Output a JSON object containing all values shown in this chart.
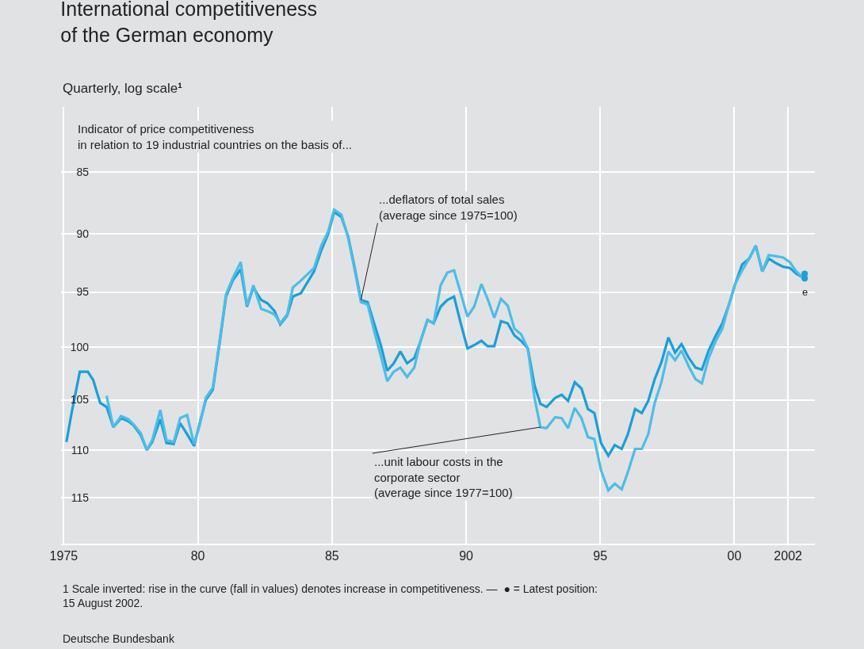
{
  "chart_data": {
    "type": "line",
    "title": "International competitiveness\nof the German economy",
    "subtitle": "Quarterly, log scale¹",
    "log": "y",
    "grid": true,
    "line_style": "solid",
    "xlim": [
      1974.9,
      2003
    ],
    "ylim": [
      120,
      80
    ],
    "xticks": [
      {
        "value": 1975,
        "label": "1975"
      },
      {
        "value": 1980,
        "label": "80"
      },
      {
        "value": 1985,
        "label": "85"
      },
      {
        "value": 1990,
        "label": "90"
      },
      {
        "value": 1995,
        "label": "95"
      },
      {
        "value": 2000,
        "label": "00"
      },
      {
        "value": 2002,
        "label": "2002"
      }
    ],
    "yticks": [
      85,
      90,
      95,
      100,
      105,
      110,
      115
    ],
    "series": [
      {
        "color": "#1a9fd9",
        "marker": "none",
        "x": [
          1975.1,
          1975.3,
          1975.6,
          1975.9,
          1976.1,
          1976.36,
          1976.6,
          1976.85,
          1977.14,
          1977.4,
          1977.6,
          1977.87,
          1978.1,
          1978.3,
          1978.6,
          1978.83,
          1979.1,
          1979.34,
          1979.6,
          1979.86,
          1980.07,
          1980.3,
          1980.56,
          1980.8,
          1981.05,
          1981.3,
          1981.6,
          1981.83,
          1982.07,
          1982.36,
          1982.6,
          1982.86,
          1983.07,
          1983.33,
          1983.54,
          1983.84,
          1984.33,
          1984.6,
          1984.86,
          1985.08,
          1985.35,
          1985.6,
          1985.84,
          1986.08,
          1986.33,
          1986.57,
          1986.82,
          1987.06,
          1987.3,
          1987.55,
          1987.8,
          1988.07,
          1988.28,
          1988.56,
          1988.79,
          1989.05,
          1989.3,
          1989.55,
          1989.8,
          1990.05,
          1990.3,
          1990.57,
          1990.8,
          1991.05,
          1991.3,
          1991.55,
          1991.8,
          1992.05,
          1992.3,
          1992.55,
          1992.77,
          1993.0,
          1993.32,
          1993.56,
          1993.8,
          1994.05,
          1994.3,
          1994.54,
          1994.78,
          1995.03,
          1995.3,
          1995.54,
          1995.8,
          1996.03,
          1996.3,
          1996.55,
          1996.79,
          1997.03,
          1997.28,
          1997.54,
          1997.79,
          1998.03,
          1998.3,
          1998.55,
          1998.79,
          1999.04,
          1999.31,
          1999.55,
          1999.8,
          2000.03,
          2000.29,
          2000.55,
          2000.8,
          2001.04,
          2001.28,
          2001.56,
          2001.82,
          2002.07,
          2002.31,
          2002.54
        ],
        "values": [
          109.2,
          106.2,
          102.3,
          102.3,
          103.1,
          105.3,
          105.7,
          107.7,
          106.8,
          107.1,
          107.5,
          108.5,
          110.0,
          109.2,
          106.9,
          109.3,
          109.4,
          107.3,
          108.4,
          109.6,
          107.3,
          105.0,
          104.0,
          99.8,
          95.4,
          94.0,
          93.0,
          96.3,
          94.6,
          95.7,
          96.0,
          96.7,
          97.9,
          97.1,
          95.4,
          95.1,
          93.2,
          91.4,
          90.0,
          88.2,
          88.6,
          90.2,
          92.8,
          95.7,
          95.9,
          97.8,
          99.8,
          102.2,
          101.5,
          100.4,
          101.5,
          101.0,
          99.6,
          97.5,
          97.8,
          96.3,
          95.7,
          95.4,
          97.8,
          100.1,
          99.8,
          99.4,
          99.9,
          99.9,
          97.6,
          97.8,
          98.9,
          99.4,
          100.1,
          103.6,
          105.4,
          105.7,
          104.8,
          104.5,
          105.1,
          103.3,
          103.9,
          105.9,
          106.3,
          109.3,
          110.6,
          109.5,
          109.9,
          108.4,
          105.9,
          106.3,
          105.1,
          103.0,
          101.4,
          99.1,
          100.5,
          99.7,
          101.0,
          101.9,
          102.1,
          100.3,
          98.9,
          97.8,
          96.1,
          94.3,
          92.6,
          92.1,
          91.0,
          93.2,
          92.1,
          92.5,
          92.8,
          92.9,
          93.4,
          93.7
        ]
      },
      {
        "color": "#4dbde6",
        "marker": "none",
        "x": [
          1976.6,
          1976.85,
          1977.14,
          1977.4,
          1977.6,
          1977.87,
          1978.1,
          1978.3,
          1978.6,
          1978.83,
          1979.1,
          1979.34,
          1979.6,
          1979.86,
          1980.07,
          1980.3,
          1980.56,
          1980.8,
          1981.05,
          1981.3,
          1981.6,
          1981.83,
          1982.07,
          1982.36,
          1982.6,
          1982.86,
          1983.07,
          1983.33,
          1983.54,
          1983.84,
          1984.33,
          1984.6,
          1984.86,
          1985.08,
          1985.35,
          1985.6,
          1985.84,
          1986.08,
          1986.33,
          1986.57,
          1986.82,
          1987.06,
          1987.3,
          1987.55,
          1987.8,
          1988.07,
          1988.28,
          1988.56,
          1988.79,
          1989.05,
          1989.3,
          1989.55,
          1989.8,
          1990.05,
          1990.3,
          1990.57,
          1990.8,
          1991.05,
          1991.3,
          1991.55,
          1991.8,
          1992.05,
          1992.3,
          1992.55,
          1992.77,
          1993.0,
          1993.32,
          1993.56,
          1993.8,
          1994.05,
          1994.3,
          1994.54,
          1994.78,
          1995.03,
          1995.3,
          1995.54,
          1995.8,
          1996.03,
          1996.3,
          1996.55,
          1996.79,
          1997.03,
          1997.28,
          1997.54,
          1997.79,
          1998.03,
          1998.3,
          1998.55,
          1998.79,
          1999.04,
          1999.31,
          1999.55,
          1999.8,
          2000.03,
          2000.29,
          2000.55,
          2000.8,
          2001.04,
          2001.28,
          2001.56,
          2001.82,
          2002.07,
          2002.31,
          2002.54
        ],
        "values": [
          104.6,
          107.7,
          106.6,
          106.9,
          107.4,
          108.3,
          110.0,
          109.0,
          106.0,
          109.0,
          109.2,
          106.8,
          106.5,
          109.4,
          107.5,
          104.8,
          103.8,
          99.6,
          95.2,
          93.8,
          92.4,
          96.2,
          94.4,
          96.5,
          96.7,
          97.0,
          97.8,
          97.0,
          94.6,
          94.0,
          92.9,
          91.0,
          89.8,
          88.0,
          88.4,
          90.3,
          93.0,
          95.9,
          96.1,
          98.5,
          100.8,
          103.2,
          102.3,
          101.9,
          102.8,
          101.9,
          99.6,
          97.5,
          97.8,
          94.4,
          93.3,
          93.1,
          95.1,
          97.2,
          96.3,
          94.3,
          95.6,
          97.3,
          95.6,
          96.2,
          98.3,
          98.8,
          100.1,
          104.8,
          107.7,
          107.8,
          106.7,
          106.8,
          107.8,
          105.8,
          106.8,
          108.7,
          108.9,
          112.1,
          114.2,
          113.5,
          114.1,
          112.3,
          109.9,
          109.9,
          108.4,
          105.3,
          103.3,
          100.4,
          101.2,
          100.3,
          101.8,
          103.0,
          103.4,
          101.0,
          99.4,
          98.3,
          96.1,
          94.3,
          93.1,
          92.1,
          91.0,
          93.2,
          91.8,
          91.9,
          92.0,
          92.4,
          93.2,
          93.7
        ]
      },
      {
        "color": "#1a9fd9",
        "type": "scatter",
        "marker": "circle",
        "x": [
          2002.62,
          2002.62
        ],
        "values": [
          93.8,
          93.4
        ]
      }
    ],
    "annotations": [
      "Indicator of price competitiveness\nin relation to 19 industrial countries on the basis of...",
      {
        "text": "e",
        "x": 2002.62,
        "y": 93.8
      },
      {
        "text": "...deflators of total sales\n(average since 1975=100)",
        "x": 1986.08,
        "y": 95.7
      },
      {
        "text": "...unit labour costs in the\ncorporate sector\n(average since 1977=100)",
        "x": 1992.77,
        "y": 107.7
      },
      "1 Scale inverted: rise in the curve (fall in values) denotes increase in competitiveness. —  ● = Latest position:\n15 August 2002.",
      "Deutsche Bundesbank"
    ]
  }
}
